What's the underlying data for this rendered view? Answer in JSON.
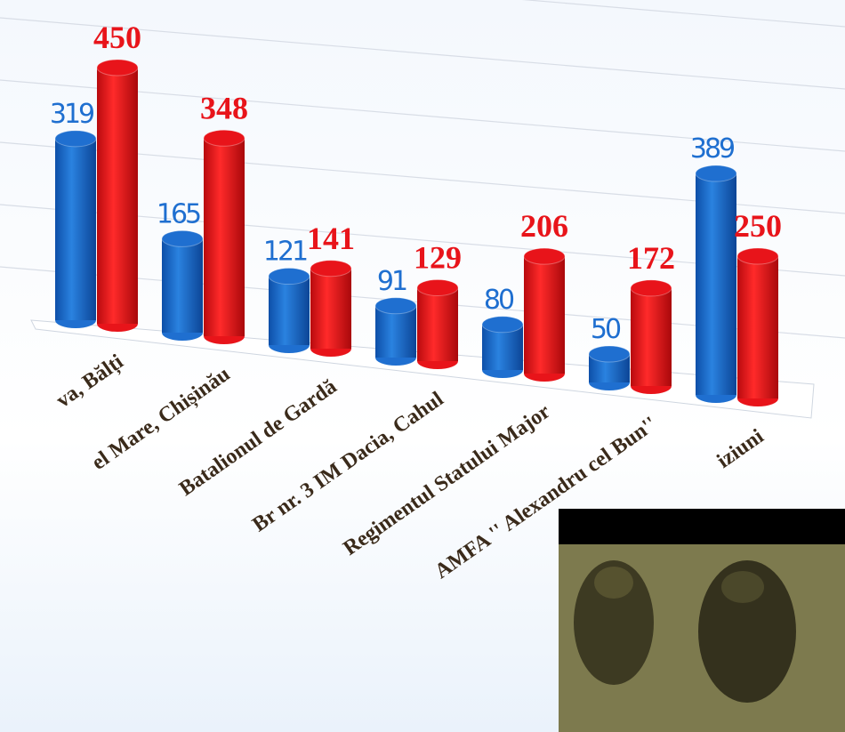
{
  "chart_data": {
    "type": "bar3d",
    "categories": [
      "va, Bălți",
      "el Mare, Chișinău",
      "Batalionul de Gardă",
      "Br nr. 3 IM Dacia, Cahul",
      "Regimentul Statului Major",
      "AMFA '' Alexandru cel Bun''",
      "iziuni"
    ],
    "series": [
      {
        "color": "#1f6fd0",
        "values": [
          319,
          165,
          121,
          91,
          80,
          50,
          389
        ]
      },
      {
        "color": "#e8141a",
        "values": [
          450,
          348,
          141,
          129,
          206,
          172,
          250
        ]
      }
    ]
  }
}
